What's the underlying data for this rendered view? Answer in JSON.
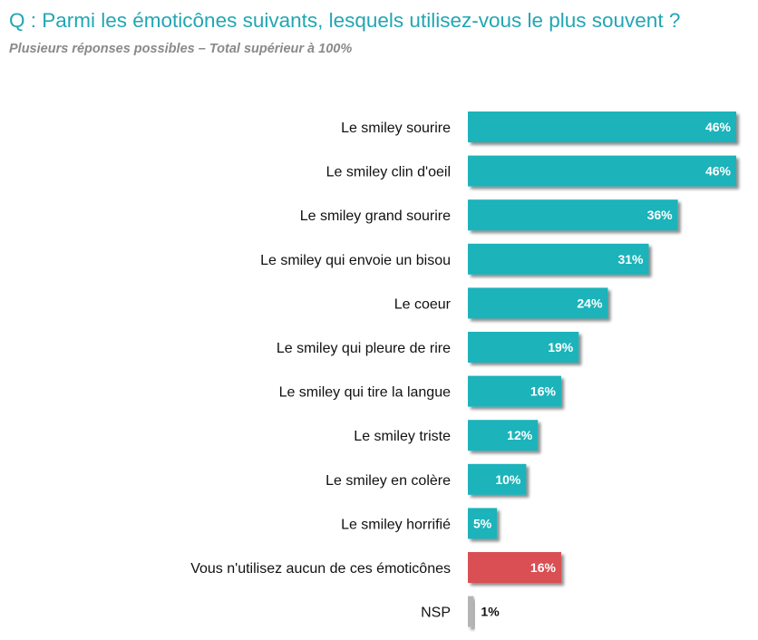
{
  "header": {
    "title": "Q : Parmi les émoticônes suivants, lesquels utilisez-vous le plus souvent ?",
    "subtitle": "Plusieurs réponses possibles – Total supérieur à 100%"
  },
  "colors": {
    "title": "#22a6b3",
    "bar_default": "#1ab3ba",
    "bar_none": "#d94f52",
    "bar_nsp": "#b5b5b5",
    "shadow": "#b0b0b0",
    "value_inside": "#ffffff",
    "value_outside": "#111111"
  },
  "chart_data": {
    "type": "bar",
    "orientation": "horizontal",
    "title": "Q : Parmi les émoticônes suivants, lesquels utilisez-vous le plus souvent ?",
    "subtitle": "Plusieurs réponses possibles – Total supérieur à 100%",
    "categories": [
      "Le smiley sourire",
      "Le smiley clin d'oeil",
      "Le smiley grand sourire",
      "Le smiley qui envoie un bisou",
      "Le coeur",
      "Le smiley qui pleure de rire",
      "Le smiley qui tire la langue",
      "Le smiley triste",
      "Le smiley en colère",
      "Le smiley horrifié",
      "Vous n'utilisez aucun de ces émoticônes",
      "NSP"
    ],
    "values": [
      46,
      46,
      36,
      31,
      24,
      19,
      16,
      12,
      10,
      5,
      16,
      1
    ],
    "value_labels": [
      "46%",
      "46%",
      "36%",
      "31%",
      "24%",
      "19%",
      "16%",
      "12%",
      "10%",
      "5%",
      "16%",
      "1%"
    ],
    "unit": "%",
    "xlim": [
      0,
      46
    ],
    "grid": false,
    "legend": "none",
    "bar_color_keys": [
      "bar_default",
      "bar_default",
      "bar_default",
      "bar_default",
      "bar_default",
      "bar_default",
      "bar_default",
      "bar_default",
      "bar_default",
      "bar_default",
      "bar_none",
      "bar_nsp"
    ]
  }
}
